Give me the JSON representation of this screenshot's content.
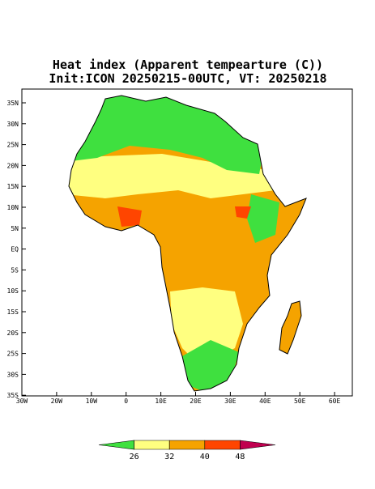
{
  "title": [
    "Heat index (Apparent tempearture (C))",
    "Init:ICON 20250215-00UTC, VT: 20250218"
  ],
  "map": {
    "lat_ticks": [
      "35N",
      "30N",
      "25N",
      "20N",
      "15N",
      "10N",
      "5N",
      "EQ",
      "5S",
      "10S",
      "15S",
      "20S",
      "25S",
      "30S",
      "35S"
    ],
    "lon_ticks": [
      "30W",
      "20W",
      "10W",
      "0",
      "10E",
      "20E",
      "30E",
      "40E",
      "50E",
      "60E"
    ]
  },
  "colorbar": {
    "levels": [
      26,
      32,
      40,
      48
    ],
    "colors": [
      "#3fe03f",
      "#ffff80",
      "#f5a300",
      "#ff4500",
      "#c0004f"
    ]
  }
}
